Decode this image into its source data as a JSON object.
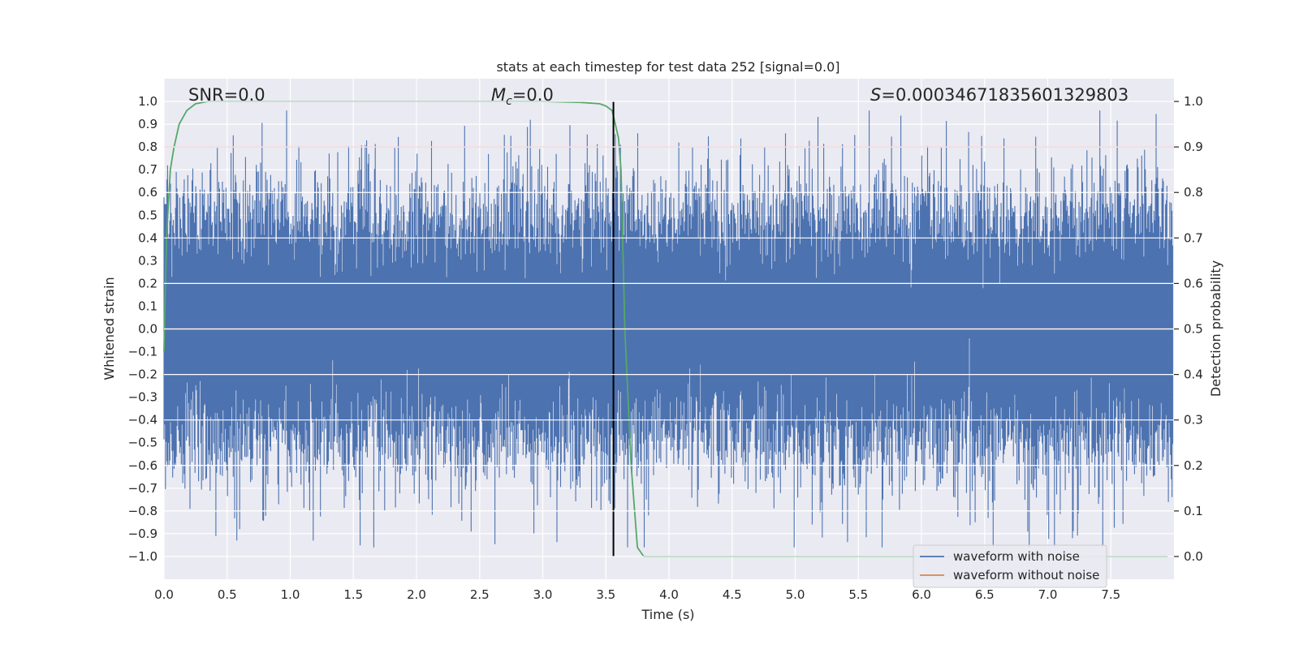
{
  "chart_data": {
    "type": "line",
    "title": "stats at each timestep for test data 252 [signal=0.0]",
    "xlabel": "Time (s)",
    "ylabel": "Whitened strain",
    "y2label": "Detection probability",
    "xlim": [
      0.0,
      8.0
    ],
    "ylim": [
      -1.1,
      1.1
    ],
    "y2lim": [
      -0.05,
      1.05
    ],
    "xticks": [
      "0.0",
      "0.5",
      "1.0",
      "1.5",
      "2.0",
      "2.5",
      "3.0",
      "3.5",
      "4.0",
      "4.5",
      "5.0",
      "5.5",
      "6.0",
      "6.5",
      "7.0",
      "7.5"
    ],
    "yticks": [
      "1.0",
      "0.9",
      "0.8",
      "0.7",
      "0.6",
      "0.5",
      "0.4",
      "0.3",
      "0.2",
      "0.1",
      "0.0",
      "−0.1",
      "−0.2",
      "−0.3",
      "−0.4",
      "−0.5",
      "−0.6",
      "−0.7",
      "−0.8",
      "−0.9",
      "−1.0"
    ],
    "y2ticks": [
      "1.0",
      "0.9",
      "0.8",
      "0.7",
      "0.6",
      "0.5",
      "0.4",
      "0.3",
      "0.2",
      "0.1",
      "0.0"
    ],
    "annotations": {
      "snr_label": "SNR=0.0",
      "mc_label_main": "M",
      "mc_label_sub": "c",
      "mc_label_value": "=0.0",
      "s_label_sym": "S",
      "s_label_value": "=0.0003467183560132980​3"
    },
    "legend": {
      "placement": "lower-right",
      "entries": [
        "waveform with noise",
        "waveform without noise"
      ]
    },
    "colors": {
      "noisy": "#4c72b0",
      "clean": "#dd8452",
      "probability": "#55a868",
      "threshold": "#c44e52",
      "marker": "#000000",
      "background": "#eaeaf2",
      "grid": "#ffffff"
    },
    "series": [
      {
        "name": "waveform with noise",
        "axis": "left",
        "kind": "noise",
        "envelope_upper_typical": 0.5,
        "envelope_lower_typical": -0.5,
        "peak_max": 0.96,
        "peak_min": -0.96
      },
      {
        "name": "waveform without noise",
        "axis": "left",
        "x": [
          0.0,
          8.0
        ],
        "y": [
          0.0,
          0.0
        ]
      },
      {
        "axis": "right",
        "x": [
          0.0,
          0.02,
          0.05,
          0.08,
          0.12,
          0.18,
          0.25,
          0.35,
          0.5,
          1.0,
          2.0,
          3.0,
          3.3,
          3.45,
          3.5,
          3.55,
          3.6,
          3.62,
          3.65,
          3.7,
          3.75,
          3.8,
          4.0,
          5.0,
          6.0,
          7.0,
          7.95
        ],
        "y": [
          0.45,
          0.7,
          0.85,
          0.9,
          0.95,
          0.98,
          0.995,
          1.0,
          1.0,
          1.0,
          1.0,
          1.0,
          0.998,
          0.995,
          0.99,
          0.98,
          0.92,
          0.85,
          0.5,
          0.2,
          0.02,
          0.0,
          0.0,
          0.0,
          0.0,
          0.0,
          0.0
        ]
      },
      {
        "axis": "right",
        "kind": "hline",
        "y": 0.9
      },
      {
        "axis": "right",
        "kind": "vline",
        "x": 3.56,
        "y_range": [
          0.0,
          1.0
        ]
      }
    ]
  }
}
